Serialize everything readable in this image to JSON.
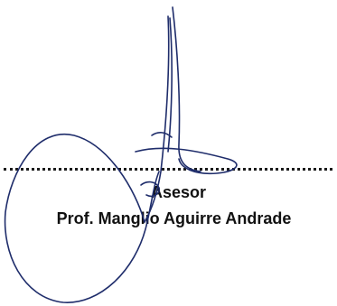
{
  "signature_block": {
    "role": "Asesor",
    "name": "Prof. Manglio Aguirre Andrade"
  },
  "colors": {
    "ink": "#111111",
    "signature_ink": "#1f2d6b"
  },
  "signature": {
    "icon": "handwritten-signature"
  }
}
